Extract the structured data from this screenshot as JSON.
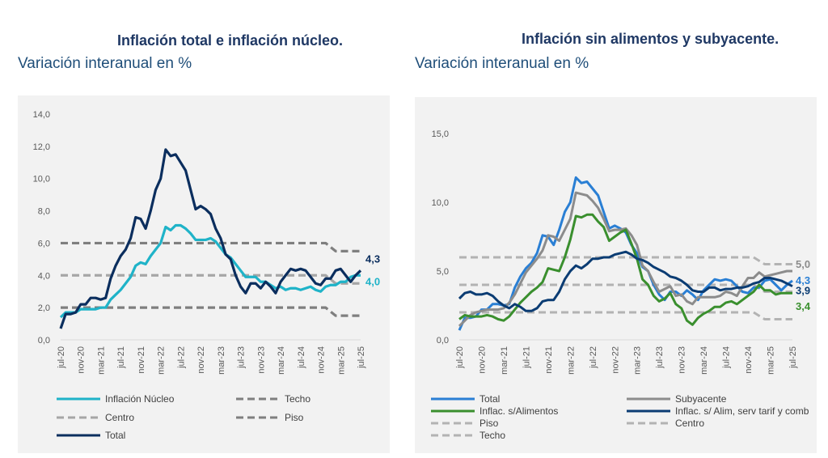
{
  "left": {
    "title": "Inflación total e inflación núcleo.",
    "subtitle": "Variación interanual en %"
  },
  "right": {
    "title": "Inflación sin alimentos y subyacente.",
    "subtitle": "Variación interanual en %"
  },
  "chart_data": [
    {
      "type": "line",
      "title": "Inflación total e inflación núcleo.",
      "ylabel": "Variación interanual en %",
      "start_month": "jul-20",
      "ylim": [
        0,
        14
      ],
      "y_ticks": [
        "0,0",
        "2,0",
        "4,0",
        "6,0",
        "8,0",
        "10,0",
        "12,0",
        "14,0"
      ],
      "y_tick_values": [
        0,
        2,
        4,
        6,
        8,
        10,
        12,
        14
      ],
      "x_ticks": [
        "jul-20",
        "nov-20",
        "mar-21",
        "jul-21",
        "nov-21",
        "mar-22",
        "jul-22",
        "nov-22",
        "mar-23",
        "jul-23",
        "nov-23",
        "mar-24",
        "jul-24",
        "nov-24",
        "mar-25",
        "jul-25"
      ],
      "grid": false,
      "legend_position": "bottom",
      "series": [
        {
          "name": "Inflación Núcleo",
          "color": "#1fb3c8",
          "style": "solid",
          "end_label": "4,0",
          "values": [
            1.4,
            1.7,
            1.7,
            1.7,
            1.9,
            1.9,
            1.9,
            1.9,
            2.0,
            2.0,
            2.5,
            2.8,
            3.1,
            3.5,
            3.9,
            4.6,
            4.8,
            4.7,
            5.2,
            5.6,
            6.0,
            7.0,
            6.8,
            7.1,
            7.1,
            6.9,
            6.6,
            6.2,
            6.2,
            6.2,
            6.3,
            6.1,
            5.7,
            5.3,
            5.1,
            4.7,
            4.3,
            3.9,
            3.9,
            3.9,
            3.6,
            3.6,
            3.4,
            3.2,
            3.3,
            3.1,
            3.2,
            3.2,
            3.1,
            3.2,
            3.3,
            3.1,
            3.0,
            3.3,
            3.4,
            3.4,
            3.6,
            3.6,
            3.9,
            4.0,
            4.0
          ]
        },
        {
          "name": "Piso",
          "color": "#7f7f7f",
          "style": "dashed",
          "segments": [
            {
              "from": "jul-20",
              "to": "dic-24",
              "value": 2.0
            },
            {
              "from": "feb-25",
              "to": "jul-25",
              "value": 1.5
            }
          ]
        },
        {
          "name": "Centro",
          "color": "#a6a6a6",
          "style": "dashed",
          "segments": [
            {
              "from": "jul-20",
              "to": "dic-24",
              "value": 4.0
            },
            {
              "from": "feb-25",
              "to": "jul-25",
              "value": 3.5
            }
          ]
        },
        {
          "name": "Techo",
          "color": "#7f7f7f",
          "style": "dashed",
          "segments": [
            {
              "from": "jul-20",
              "to": "dic-24",
              "value": 6.0
            },
            {
              "from": "feb-25",
              "to": "jul-25",
              "value": 5.5
            }
          ]
        },
        {
          "name": "Total",
          "color": "#0b2e5e",
          "style": "solid",
          "end_label": "4,3",
          "values": [
            0.7,
            1.6,
            1.6,
            1.7,
            2.2,
            2.2,
            2.6,
            2.6,
            2.5,
            2.6,
            3.8,
            4.6,
            5.2,
            5.6,
            6.3,
            7.6,
            7.5,
            6.9,
            8.0,
            9.3,
            10.0,
            11.8,
            11.4,
            11.5,
            11.0,
            10.5,
            9.3,
            8.1,
            8.3,
            8.1,
            7.8,
            6.9,
            6.3,
            5.3,
            5.0,
            4.0,
            3.3,
            2.9,
            3.5,
            3.5,
            3.2,
            3.6,
            3.3,
            2.9,
            3.6,
            4.0,
            4.4,
            4.3,
            4.4,
            4.3,
            3.9,
            3.5,
            3.4,
            3.8,
            3.8,
            4.3,
            4.4,
            4.0,
            3.6,
            4.0,
            4.3
          ]
        }
      ]
    },
    {
      "type": "line",
      "title": "Inflación sin alimentos y subyacente.",
      "ylabel": "Variación interanual en %",
      "start_month": "jul-20",
      "ylim": [
        0,
        15
      ],
      "y_ticks": [
        "0,0",
        "5,0",
        "10,0",
        "15,0"
      ],
      "y_tick_values": [
        0,
        5,
        10,
        15
      ],
      "x_ticks": [
        "jul-20",
        "nov-20",
        "mar-21",
        "jul-21",
        "nov-21",
        "mar-22",
        "jul-22",
        "nov-22",
        "mar-23",
        "jul-23",
        "nov-23",
        "mar-24",
        "jul-24",
        "nov-24",
        "mar-25",
        "jul-25"
      ],
      "grid": false,
      "legend_position": "bottom",
      "series": [
        {
          "name": "Total",
          "color": "#2a7fd4",
          "style": "solid",
          "end_label": "4,3",
          "values": [
            0.7,
            1.6,
            1.6,
            1.7,
            2.2,
            2.2,
            2.6,
            2.6,
            2.5,
            2.6,
            3.8,
            4.6,
            5.2,
            5.6,
            6.3,
            7.6,
            7.5,
            6.9,
            8.0,
            9.3,
            10.0,
            11.8,
            11.4,
            11.5,
            11.0,
            10.5,
            9.3,
            8.1,
            8.3,
            8.1,
            7.8,
            6.9,
            6.3,
            5.3,
            5.0,
            4.0,
            3.3,
            2.9,
            3.5,
            3.5,
            3.2,
            3.6,
            3.3,
            2.9,
            3.6,
            4.0,
            4.4,
            4.3,
            4.4,
            4.3,
            3.9,
            3.5,
            3.4,
            3.8,
            3.8,
            4.3,
            4.4,
            4.0,
            3.6,
            4.0,
            4.3
          ]
        },
        {
          "name": "Subyacente",
          "color": "#8c8c8c",
          "style": "solid",
          "end_label": "5,0",
          "values": [
            1.0,
            1.4,
            1.8,
            2.0,
            2.1,
            2.2,
            2.2,
            2.2,
            2.3,
            2.7,
            3.3,
            4.1,
            4.9,
            5.4,
            5.9,
            6.5,
            7.6,
            7.5,
            7.2,
            8.0,
            8.8,
            10.7,
            10.6,
            10.5,
            10.1,
            9.6,
            8.8,
            7.9,
            8.0,
            8.0,
            8.1,
            7.6,
            6.9,
            5.4,
            5.0,
            4.2,
            3.5,
            3.7,
            3.9,
            3.2,
            3.3,
            2.8,
            2.6,
            3.1,
            3.1,
            3.1,
            3.1,
            3.2,
            3.5,
            3.4,
            3.2,
            3.9,
            4.5,
            4.5,
            4.9,
            4.6,
            4.7,
            4.8,
            4.9,
            5.0,
            5.0
          ]
        },
        {
          "name": "Inflac. s/Alimentos",
          "color": "#3a8f2e",
          "style": "solid",
          "end_label": "3,4",
          "values": [
            1.5,
            1.8,
            1.7,
            1.7,
            1.7,
            1.8,
            1.7,
            1.5,
            1.4,
            1.7,
            2.2,
            2.7,
            3.1,
            3.5,
            3.8,
            4.2,
            5.2,
            5.1,
            5.0,
            6.0,
            7.3,
            9.0,
            8.9,
            9.1,
            9.1,
            8.6,
            8.2,
            7.2,
            7.5,
            7.8,
            8.0,
            7.0,
            5.9,
            4.4,
            4.0,
            3.2,
            2.8,
            3.0,
            3.4,
            2.6,
            2.3,
            1.4,
            1.1,
            1.6,
            1.9,
            2.1,
            2.4,
            2.4,
            2.7,
            2.8,
            2.6,
            2.9,
            3.2,
            3.5,
            4.0,
            3.6,
            3.6,
            3.3,
            3.4,
            3.4,
            3.4
          ]
        },
        {
          "name": "Inflac. s/ Alim, serv tarif y comb",
          "color": "#0b3c73",
          "style": "solid",
          "end_label": "3,9",
          "values": [
            3.0,
            3.4,
            3.5,
            3.3,
            3.3,
            3.4,
            3.2,
            2.8,
            2.5,
            2.3,
            2.6,
            2.4,
            2.1,
            2.1,
            2.3,
            2.8,
            2.9,
            2.9,
            3.5,
            4.4,
            5.0,
            5.4,
            5.2,
            5.5,
            5.9,
            5.9,
            6.0,
            6.0,
            6.2,
            6.3,
            6.4,
            6.2,
            5.9,
            5.8,
            5.6,
            5.3,
            5.1,
            4.9,
            4.6,
            4.5,
            4.3,
            4.0,
            3.6,
            3.5,
            3.5,
            3.8,
            3.8,
            3.6,
            3.7,
            3.7,
            3.8,
            3.8,
            3.9,
            4.1,
            4.2,
            4.5,
            4.5,
            4.4,
            4.3,
            4.1,
            3.9
          ]
        },
        {
          "name": "Piso",
          "color": "#b3b3b3",
          "style": "dashed",
          "segments": [
            {
              "from": "jul-20",
              "to": "dic-24",
              "value": 2.0
            },
            {
              "from": "feb-25",
              "to": "jul-25",
              "value": 1.5
            }
          ]
        },
        {
          "name": "Centro",
          "color": "#b3b3b3",
          "style": "dashed",
          "segments": [
            {
              "from": "jul-20",
              "to": "dic-24",
              "value": 4.0
            },
            {
              "from": "feb-25",
              "to": "jul-25",
              "value": 3.5
            }
          ]
        },
        {
          "name": "Techo",
          "color": "#b3b3b3",
          "style": "dashed",
          "segments": [
            {
              "from": "jul-20",
              "to": "dic-24",
              "value": 6.0
            },
            {
              "from": "feb-25",
              "to": "jul-25",
              "value": 5.5
            }
          ]
        }
      ]
    }
  ]
}
